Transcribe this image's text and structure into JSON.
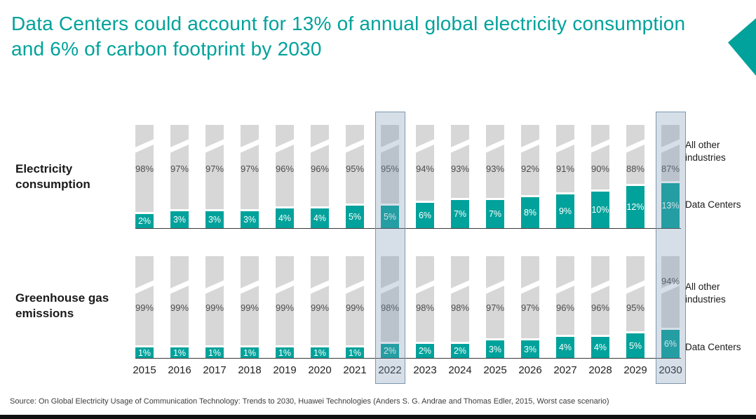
{
  "title": "Data Centers could account for 13% of annual global electricity consumption and 6% of carbon footprint by 2030",
  "source_note": "Source:  On Global Electricity Usage of Communication Technology: Trends to 2030, Huawei Technologies (Anders S. G. Andrae and Thomas Edler, 2015, Worst case scenario)",
  "highlighted_years": [
    "2022",
    "2030"
  ],
  "colors": {
    "accent_teal": "#00A29B",
    "bar_gray": "#D7D7D7",
    "highlight_blue": "#7D97AD"
  },
  "chart_data": [
    {
      "type": "bar",
      "stacking": "percent",
      "title": "Electricity consumption",
      "categories": [
        "2015",
        "2016",
        "2017",
        "2018",
        "2019",
        "2020",
        "2021",
        "2022",
        "2023",
        "2024",
        "2025",
        "2026",
        "2027",
        "2028",
        "2029",
        "2030"
      ],
      "series": [
        {
          "name": "All other industries",
          "color": "#D7D7D7",
          "values": [
            98,
            97,
            97,
            97,
            96,
            96,
            95,
            95,
            94,
            93,
            93,
            92,
            91,
            90,
            88,
            87
          ]
        },
        {
          "name": "Data Centers",
          "color": "#00A29B",
          "values": [
            2,
            3,
            3,
            3,
            4,
            4,
            5,
            5,
            6,
            7,
            7,
            8,
            9,
            10,
            12,
            13
          ]
        }
      ],
      "value_suffix": "%",
      "legend_position": "right",
      "annotations": [
        "2022 and 2030 columns highlighted"
      ]
    },
    {
      "type": "bar",
      "stacking": "percent",
      "title": "Greenhouse gas emissions",
      "categories": [
        "2015",
        "2016",
        "2017",
        "2018",
        "2019",
        "2020",
        "2021",
        "2022",
        "2023",
        "2024",
        "2025",
        "2026",
        "2027",
        "2028",
        "2029",
        "2030"
      ],
      "series": [
        {
          "name": "All other industries",
          "color": "#D7D7D7",
          "values": [
            99,
            99,
            99,
            99,
            99,
            99,
            99,
            98,
            98,
            98,
            97,
            97,
            96,
            96,
            95,
            94
          ]
        },
        {
          "name": "Data Centers",
          "color": "#00A29B",
          "values": [
            1,
            1,
            1,
            1,
            1,
            1,
            1,
            2,
            2,
            2,
            3,
            3,
            4,
            4,
            5,
            6
          ]
        }
      ],
      "value_suffix": "%",
      "legend_position": "right",
      "annotations": [
        "2022 and 2030 columns highlighted"
      ]
    }
  ]
}
